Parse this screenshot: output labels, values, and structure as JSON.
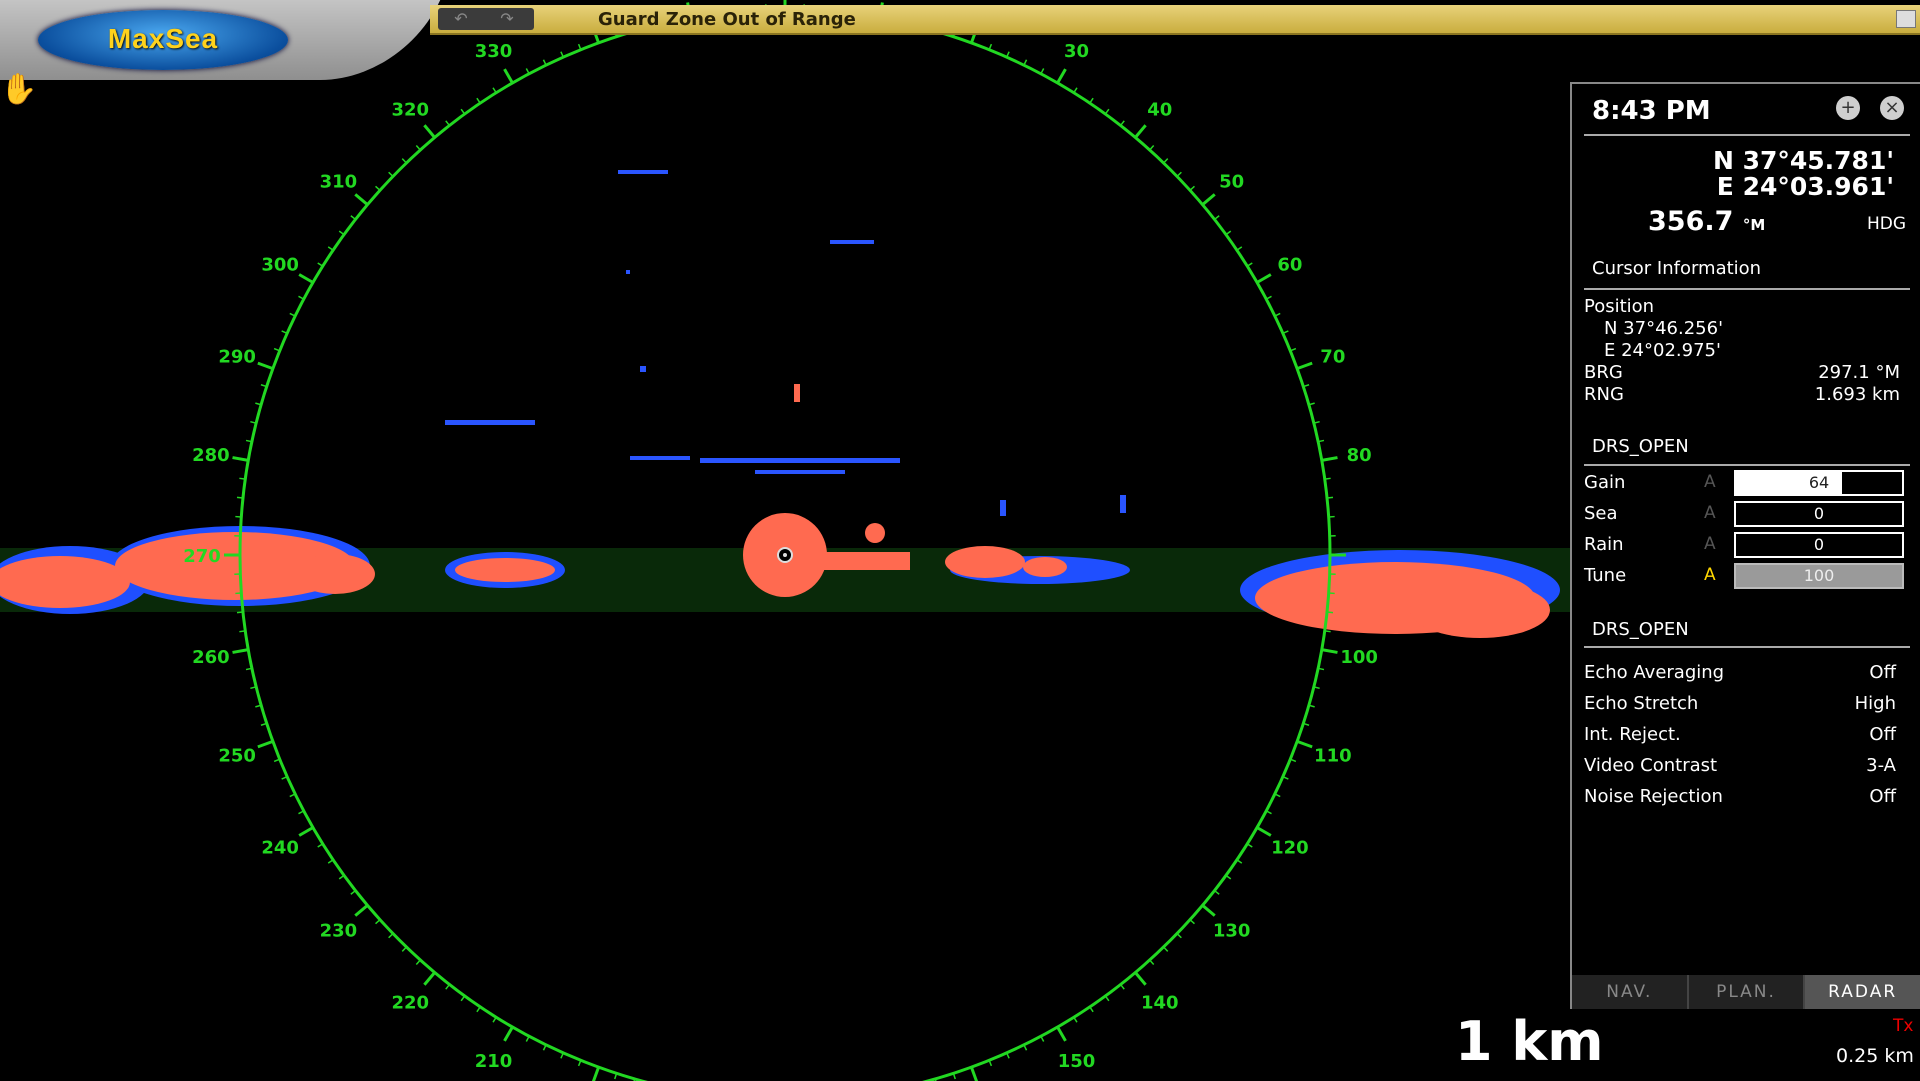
{
  "app": {
    "logo_text": "MaxSea"
  },
  "toolbar": {
    "undo_icon": "undo-icon",
    "redo_icon": "redo-icon",
    "undo_label": "↶",
    "redo_label": "↷"
  },
  "status": {
    "message": "Guard Zone Out of Range"
  },
  "radar": {
    "bearing_labels": [
      "30",
      "40",
      "50",
      "60",
      "70",
      "80",
      "100",
      "110",
      "120",
      "130",
      "140",
      "150",
      "210",
      "220",
      "230",
      "240",
      "250",
      "260",
      "270",
      "280",
      "290",
      "300",
      "310",
      "320",
      "330"
    ],
    "ring_color": "#22d822",
    "echo_colors": {
      "strong": "#ff6a50",
      "medium": "#1f4fff",
      "weak": "#1d6b1d"
    },
    "range_scale": "1 km",
    "ring_interval": "0.25 km",
    "tx_status": "Tx"
  },
  "panel": {
    "time": "8:43 PM",
    "add_icon": "plus-circle-icon",
    "close_icon": "close-circle-icon",
    "add_label": "+",
    "close_label": "×",
    "lat": "N 37°45.781'",
    "lon": "E 24°03.961'",
    "heading": "356.7",
    "heading_unit": "°M",
    "heading_label": "HDG",
    "cursor_title": "Cursor Information",
    "position_label": "Position",
    "cursor_lat": "N 37°46.256'",
    "cursor_lon": "E 24°02.975'",
    "brg_label": "BRG",
    "brg_value": "297.1 °M",
    "rng_label": "RNG",
    "rng_value": "1.693 km",
    "radar_name": "DRS_OPEN",
    "controls": [
      {
        "label": "Gain",
        "auto": "A",
        "value": "64",
        "level": 0.64
      },
      {
        "label": "Sea",
        "auto": "A",
        "value": "0"
      },
      {
        "label": "Rain",
        "auto": "A",
        "value": "0"
      },
      {
        "label": "Tune",
        "auto": "A",
        "value": "100"
      }
    ],
    "radar_name2": "DRS_OPEN",
    "settings": [
      {
        "label": "Echo Averaging",
        "value": "Off"
      },
      {
        "label": "Echo Stretch",
        "value": "High"
      },
      {
        "label": "Int. Reject.",
        "value": "Off"
      },
      {
        "label": "Video Contrast",
        "value": "3-A"
      },
      {
        "label": "Noise Rejection",
        "value": "Off"
      }
    ],
    "tabs": [
      "NAV.",
      "PLAN.",
      "RADAR"
    ],
    "active_tab": "RADAR"
  }
}
